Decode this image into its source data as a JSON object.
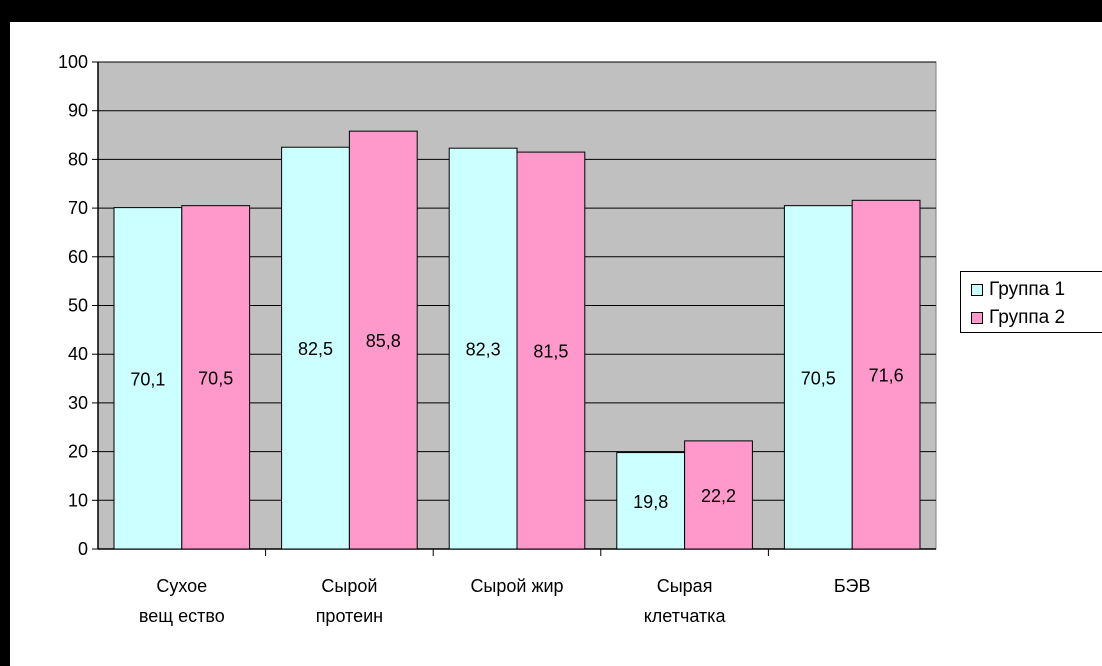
{
  "chart_data": {
    "type": "bar",
    "categories": [
      [
        "Сухое",
        "вещ ество"
      ],
      [
        "Сырой",
        "протеин"
      ],
      [
        "Сырой жир"
      ],
      [
        "Сырая",
        "клетчатка"
      ],
      [
        "БЭВ"
      ]
    ],
    "series": [
      {
        "name": "Группа 1",
        "color": "#ccffff",
        "values": [
          70.1,
          82.5,
          82.3,
          19.8,
          70.5
        ],
        "labels": [
          "70,1",
          "82,5",
          "82,3",
          "19,8",
          "70,5"
        ]
      },
      {
        "name": "Группа 2",
        "color": "#ff99cc",
        "values": [
          70.5,
          85.8,
          81.5,
          22.2,
          71.6
        ],
        "labels": [
          "70,5",
          "85,8",
          "81,5",
          "22,2",
          "71,6"
        ]
      }
    ],
    "y_ticks": [
      "0",
      "10",
      "20",
      "30",
      "40",
      "50",
      "60",
      "70",
      "80",
      "90",
      "100"
    ],
    "ylim": [
      0,
      100
    ],
    "grid": true,
    "plot_background": "#c0c0c0",
    "legend_position": "right",
    "title": "",
    "xlabel": "",
    "ylabel": ""
  }
}
